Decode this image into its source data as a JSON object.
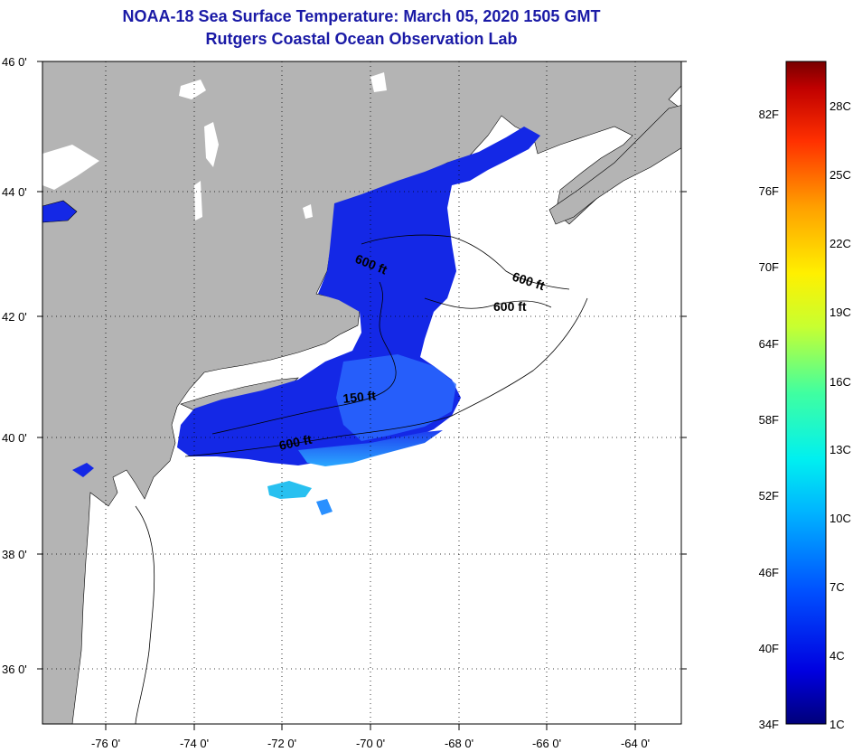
{
  "title": "NOAA-18 Sea Surface Temperature:  March 05, 2020 1505 GMT",
  "subtitle": "Rutgers Coastal Ocean Observation Lab",
  "map": {
    "lat_labels": [
      "46 0'",
      "44 0'",
      "42 0'",
      "40 0'",
      "38 0'",
      "36 0'"
    ],
    "lon_labels": [
      "-76 0'",
      "-74 0'",
      "-72 0'",
      "-70 0'",
      "-68 0'",
      "-66 0'",
      "-64 0'"
    ],
    "contour_labels": [
      "600 ft",
      "600 ft",
      "600 ft",
      "150 ft",
      "600 ft"
    ],
    "colors": {
      "land": "#b4b4b4",
      "no_data": "#ffffff",
      "grid": "#000000"
    }
  },
  "colorbar": {
    "fahrenheit_labels": [
      "82F",
      "76F",
      "70F",
      "64F",
      "58F",
      "52F",
      "46F",
      "40F",
      "34F"
    ],
    "celsius_labels": [
      "28C",
      "25C",
      "22C",
      "19C",
      "16C",
      "13C",
      "10C",
      "7C",
      "4C",
      "1C"
    ]
  }
}
